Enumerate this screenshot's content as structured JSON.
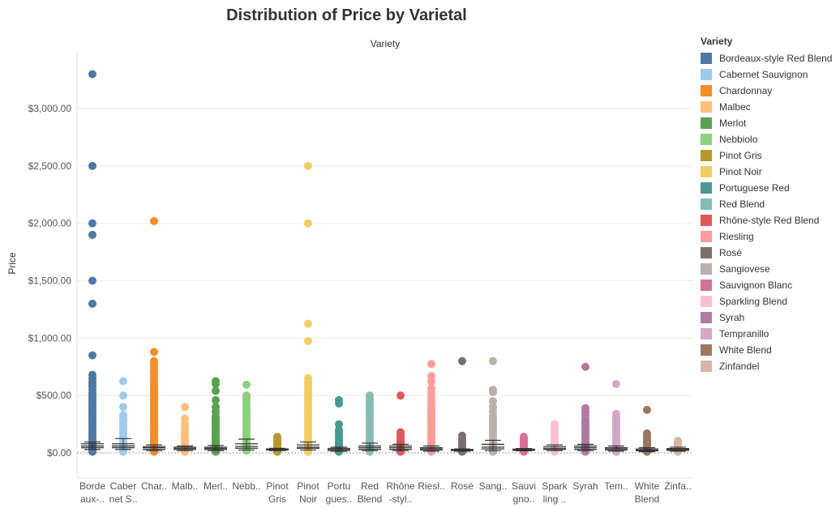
{
  "chart_data": {
    "type": "scatter",
    "title": "Distribution of Price by Varietal",
    "column_header": "Variety",
    "ylabel": "Price",
    "ylim": [
      0,
      3300
    ],
    "y_ticks": [
      "$0.00",
      "$500.00",
      "$1,000.00",
      "$1,500.00",
      "$2,000.00",
      "$2,500.00",
      "$3,000.00"
    ],
    "y_tick_values": [
      0,
      500,
      1000,
      1500,
      2000,
      2500,
      3000
    ],
    "legend_title": "Variety",
    "categories": [
      {
        "name": "Bordeaux-style Red Blend",
        "label": [
          "Borde",
          "aux-.."
        ],
        "color": "#4e79a7",
        "values": [
          3300,
          2500,
          2000,
          1900,
          1500,
          1300,
          850,
          680,
          650,
          620,
          600,
          580,
          550,
          520,
          500,
          480,
          460,
          440,
          420,
          400,
          380,
          360,
          340,
          320,
          300,
          280,
          260,
          240,
          220,
          200,
          180,
          160,
          140,
          120,
          100,
          90,
          80,
          70,
          60,
          50,
          40,
          30,
          20,
          10
        ],
        "box": [
          30,
          45,
          60,
          80,
          95
        ]
      },
      {
        "name": "Cabernet Sauvignon",
        "label": [
          "Caber",
          "net S.."
        ],
        "color": "#a0cbe8",
        "values": [
          625,
          500,
          400,
          330,
          300,
          280,
          250,
          220,
          200,
          180,
          160,
          140,
          120,
          100,
          90,
          80,
          70,
          60,
          50,
          40,
          30,
          20,
          10
        ],
        "box": [
          30,
          45,
          60,
          80,
          125
        ]
      },
      {
        "name": "Chardonnay",
        "label": [
          "Char.."
        ],
        "color": "#f28e2b",
        "values": [
          2020,
          880,
          800,
          780,
          750,
          720,
          700,
          680,
          650,
          620,
          600,
          580,
          560,
          540,
          520,
          500,
          480,
          460,
          440,
          420,
          400,
          380,
          360,
          340,
          320,
          300,
          280,
          260,
          240,
          220,
          200,
          180,
          160,
          140,
          120,
          100,
          90,
          80,
          70,
          60,
          50,
          40,
          30,
          20,
          10
        ],
        "box": [
          20,
          30,
          45,
          55,
          70
        ]
      },
      {
        "name": "Malbec",
        "label": [
          "Malb.."
        ],
        "color": "#ffbe7d",
        "values": [
          400,
          300,
          250,
          230,
          200,
          180,
          160,
          140,
          120,
          100,
          90,
          80,
          70,
          60,
          50,
          40,
          30,
          20,
          10
        ],
        "box": [
          20,
          30,
          40,
          50,
          60
        ]
      },
      {
        "name": "Merlot",
        "label": [
          "Merl.."
        ],
        "color": "#59a14f",
        "values": [
          625,
          600,
          540,
          460,
          400,
          360,
          320,
          300,
          280,
          260,
          240,
          220,
          200,
          180,
          160,
          140,
          120,
          100,
          90,
          80,
          70,
          60,
          50,
          40,
          30,
          20,
          10
        ],
        "box": [
          20,
          30,
          40,
          50,
          65
        ]
      },
      {
        "name": "Nebbiolo",
        "label": [
          "Nebb.."
        ],
        "color": "#8cd17d",
        "values": [
          595,
          500,
          480,
          450,
          420,
          400,
          380,
          360,
          340,
          320,
          300,
          280,
          260,
          240,
          220,
          200,
          180,
          160,
          140,
          120,
          100,
          90,
          80,
          70,
          60,
          50,
          40,
          30,
          20
        ],
        "box": [
          25,
          40,
          55,
          80,
          120
        ]
      },
      {
        "name": "Pinot Gris",
        "label": [
          "Pinot",
          "Gris"
        ],
        "color": "#b6992d",
        "values": [
          140,
          130,
          120,
          110,
          100,
          90,
          80,
          70,
          60,
          50,
          40,
          35,
          30,
          25,
          20,
          15,
          10
        ],
        "box": [
          20,
          25,
          30,
          35,
          40
        ]
      },
      {
        "name": "Pinot Noir",
        "label": [
          "Pinot",
          "Noir"
        ],
        "color": "#f1ce63",
        "values": [
          2500,
          2000,
          1125,
          975,
          650,
          620,
          600,
          580,
          560,
          540,
          520,
          500,
          480,
          460,
          440,
          420,
          400,
          380,
          360,
          340,
          320,
          300,
          280,
          260,
          240,
          220,
          200,
          180,
          160,
          140,
          120,
          100,
          90,
          80,
          70,
          60,
          50,
          40,
          30,
          20,
          10
        ],
        "box": [
          25,
          40,
          50,
          70,
          95
        ]
      },
      {
        "name": "Portuguese Red",
        "label": [
          "Portu",
          "gues.."
        ],
        "color": "#499894",
        "values": [
          460,
          430,
          250,
          200,
          180,
          160,
          140,
          120,
          100,
          90,
          80,
          70,
          60,
          50,
          40,
          30,
          20,
          10
        ],
        "box": [
          15,
          20,
          30,
          40,
          50
        ]
      },
      {
        "name": "Red Blend",
        "label": [
          "Red",
          "Blend"
        ],
        "color": "#86bcb6",
        "values": [
          500,
          470,
          440,
          410,
          380,
          350,
          320,
          300,
          280,
          260,
          240,
          220,
          200,
          180,
          160,
          140,
          120,
          100,
          90,
          80,
          70,
          60,
          50,
          40,
          30,
          20,
          10
        ],
        "box": [
          20,
          30,
          45,
          60,
          85
        ]
      },
      {
        "name": "Rhône-style Red Blend",
        "label": [
          "Rhône",
          "-styl.."
        ],
        "color": "#e15759",
        "values": [
          500,
          180,
          160,
          140,
          120,
          100,
          90,
          80,
          70,
          60,
          50,
          40,
          30,
          20,
          10
        ],
        "box": [
          20,
          30,
          45,
          60,
          75
        ]
      },
      {
        "name": "Riesling",
        "label": [
          "Riesl.."
        ],
        "color": "#ff9d9a",
        "values": [
          775,
          670,
          620,
          560,
          520,
          480,
          450,
          420,
          400,
          380,
          360,
          340,
          320,
          300,
          280,
          260,
          240,
          220,
          200,
          180,
          160,
          140,
          120,
          100,
          90,
          80,
          70,
          60,
          50,
          40,
          30,
          20,
          10
        ],
        "box": [
          15,
          25,
          35,
          45,
          60
        ]
      },
      {
        "name": "Rosé",
        "label": [
          "Rosé"
        ],
        "color": "#79706e",
        "values": [
          800,
          150,
          120,
          100,
          80,
          60,
          50,
          40,
          30,
          20,
          15,
          10
        ],
        "box": [
          15,
          20,
          25,
          30,
          35
        ]
      },
      {
        "name": "Sangiovese",
        "label": [
          "Sang.."
        ],
        "color": "#bab0ac",
        "values": [
          800,
          550,
          530,
          450,
          400,
          360,
          320,
          300,
          280,
          260,
          240,
          220,
          200,
          180,
          160,
          140,
          120,
          100,
          90,
          80,
          70,
          60,
          50,
          40,
          30,
          20,
          10
        ],
        "box": [
          20,
          35,
          50,
          75,
          110
        ]
      },
      {
        "name": "Sauvignon Blanc",
        "label": [
          "Sauvi",
          "gno.."
        ],
        "color": "#d37295",
        "values": [
          140,
          130,
          120,
          110,
          100,
          90,
          80,
          70,
          60,
          50,
          40,
          35,
          30,
          25,
          20,
          15,
          10
        ],
        "box": [
          18,
          23,
          28,
          33,
          38
        ]
      },
      {
        "name": "Sparkling Blend",
        "label": [
          "Spark",
          "ling .."
        ],
        "color": "#fabfd2",
        "values": [
          250,
          220,
          200,
          180,
          160,
          140,
          120,
          100,
          90,
          80,
          70,
          60,
          50,
          40,
          30,
          20,
          10
        ],
        "box": [
          20,
          30,
          40,
          55,
          70
        ]
      },
      {
        "name": "Syrah",
        "label": [
          "Syrah"
        ],
        "color": "#b07aa1",
        "values": [
          750,
          390,
          360,
          330,
          300,
          280,
          260,
          240,
          220,
          200,
          180,
          160,
          140,
          120,
          100,
          90,
          80,
          70,
          60,
          50,
          40,
          30,
          20,
          10
        ],
        "box": [
          20,
          30,
          45,
          60,
          75
        ]
      },
      {
        "name": "Tempranillo",
        "label": [
          "Tem.."
        ],
        "color": "#d4a6c8",
        "values": [
          600,
          340,
          320,
          300,
          280,
          260,
          240,
          220,
          200,
          180,
          160,
          140,
          120,
          100,
          90,
          80,
          70,
          60,
          50,
          40,
          30,
          20,
          10
        ],
        "box": [
          15,
          25,
          35,
          45,
          60
        ]
      },
      {
        "name": "White Blend",
        "label": [
          "White",
          "Blend"
        ],
        "color": "#9d7660",
        "values": [
          375,
          170,
          150,
          130,
          110,
          100,
          90,
          80,
          70,
          60,
          50,
          40,
          30,
          20,
          10
        ],
        "box": [
          10,
          18,
          25,
          35,
          45
        ]
      },
      {
        "name": "Zinfandel",
        "label": [
          "Zinfa.."
        ],
        "color": "#d7b5a6",
        "values": [
          105,
          95,
          85,
          75,
          65,
          55,
          50,
          45,
          40,
          35,
          30,
          25,
          20,
          15,
          10
        ],
        "box": [
          15,
          22,
          30,
          38,
          50
        ]
      }
    ]
  }
}
